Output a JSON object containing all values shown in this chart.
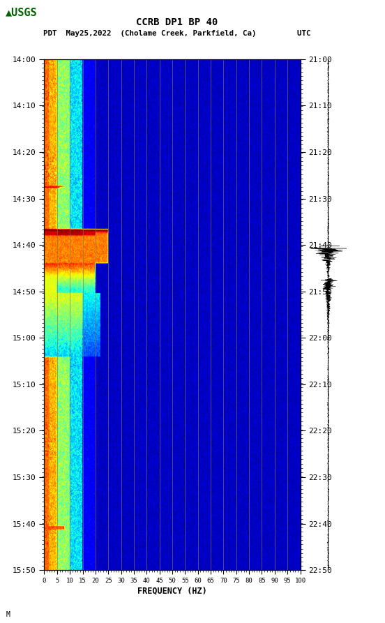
{
  "title_line1": "CCRB DP1 BP 40",
  "title_line2": "PDT  May25,2022  (Cholame Creek, Parkfield, Ca)         UTC",
  "xlabel": "FREQUENCY (HZ)",
  "freq_ticks": [
    0,
    5,
    10,
    15,
    20,
    25,
    30,
    35,
    40,
    45,
    50,
    55,
    60,
    65,
    70,
    75,
    80,
    85,
    90,
    95,
    100
  ],
  "time_ticks_left": [
    "14:00",
    "14:10",
    "14:20",
    "14:30",
    "14:40",
    "14:50",
    "15:00",
    "15:10",
    "15:20",
    "15:30",
    "15:40",
    "15:50"
  ],
  "time_ticks_right": [
    "21:00",
    "21:10",
    "21:20",
    "21:30",
    "21:40",
    "21:50",
    "22:00",
    "22:10",
    "22:20",
    "22:30",
    "22:40",
    "22:50"
  ],
  "freq_min": 0,
  "freq_max": 100,
  "n_time": 720,
  "n_freq": 500,
  "background_color": "#ffffff",
  "colormap": "jet",
  "fig_width": 5.52,
  "fig_height": 8.93,
  "golden_line_color": "#8B7355",
  "golden_line_freqs": [
    5,
    10,
    15,
    20,
    25,
    30,
    35,
    40,
    45,
    50,
    55,
    60,
    65,
    70,
    75,
    80,
    85,
    90,
    95,
    100
  ]
}
